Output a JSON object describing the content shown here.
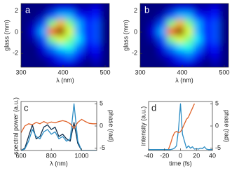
{
  "chart_data": [
    {
      "type": "heatmap",
      "label": "a",
      "xlabel": "λ (nm)",
      "ylabel": "glass (mm)",
      "x_edges": [
        300,
        321,
        342,
        363,
        384,
        405,
        426,
        447,
        468,
        489,
        510
      ],
      "y_edges": [
        2.7,
        1.95,
        1.2,
        0.45,
        -0.3,
        -1.05,
        -1.8,
        -2.55,
        -3.3
      ],
      "z": [
        [
          0,
          0,
          0,
          0.05,
          0.1,
          0.1,
          0.05,
          0.05,
          0.1,
          0
        ],
        [
          0,
          0,
          0.05,
          0.2,
          0.3,
          0.3,
          0.15,
          0.1,
          0.15,
          0
        ],
        [
          0,
          0.05,
          0.2,
          0.5,
          0.7,
          0.5,
          0.3,
          0.15,
          0.2,
          0
        ],
        [
          0,
          0.1,
          0.3,
          0.8,
          1,
          0.6,
          0.3,
          0.15,
          0.2,
          0
        ],
        [
          0,
          0.05,
          0.2,
          0.5,
          0.6,
          0.5,
          0.35,
          0.15,
          0.2,
          0
        ],
        [
          0,
          0,
          0.1,
          0.25,
          0.35,
          0.4,
          0.25,
          0.1,
          0.15,
          0
        ],
        [
          0,
          0,
          0.05,
          0.1,
          0.2,
          0.25,
          0.15,
          0.05,
          0.1,
          0
        ],
        [
          0,
          0,
          0,
          0.05,
          0.1,
          0.1,
          0.05,
          0,
          0.05,
          0
        ]
      ],
      "xlim": [
        300,
        510
      ],
      "xticks": [
        300,
        400,
        500
      ],
      "ylim": [
        -3.3,
        2.7
      ],
      "yticks": [
        -2,
        0,
        2
      ]
    },
    {
      "type": "heatmap",
      "label": "b",
      "xlabel": "λ (nm)",
      "ylabel": "glass (mm)",
      "x_edges": [
        300,
        321,
        342,
        363,
        384,
        405,
        426,
        447,
        468,
        489,
        510
      ],
      "y_edges": [
        2.7,
        1.95,
        1.2,
        0.45,
        -0.3,
        -1.05,
        -1.8,
        -2.55,
        -3.3
      ],
      "z": [
        [
          0,
          0,
          0,
          0.05,
          0.1,
          0.1,
          0.05,
          0.05,
          0.1,
          0
        ],
        [
          0,
          0,
          0.05,
          0.2,
          0.3,
          0.3,
          0.15,
          0.1,
          0.15,
          0
        ],
        [
          0,
          0.05,
          0.2,
          0.5,
          0.7,
          0.5,
          0.3,
          0.15,
          0.2,
          0
        ],
        [
          0,
          0.1,
          0.3,
          0.8,
          1,
          0.6,
          0.3,
          0.15,
          0.2,
          0
        ],
        [
          0,
          0.05,
          0.2,
          0.5,
          0.6,
          0.5,
          0.35,
          0.15,
          0.2,
          0
        ],
        [
          0,
          0,
          0.1,
          0.25,
          0.35,
          0.4,
          0.25,
          0.1,
          0.15,
          0
        ],
        [
          0,
          0,
          0.05,
          0.1,
          0.2,
          0.25,
          0.15,
          0.05,
          0.1,
          0
        ],
        [
          0,
          0,
          0,
          0.05,
          0.1,
          0.1,
          0.05,
          0,
          0.05,
          0
        ]
      ],
      "xlim": [
        300,
        510
      ],
      "xticks": [
        300,
        400,
        500
      ],
      "ylim": [
        -3.3,
        2.7
      ],
      "yticks": [
        -2,
        0,
        2
      ]
    },
    {
      "type": "line",
      "label": "c",
      "xlabel": "λ (nm)",
      "ylabel": "spectral power (a.u.)",
      "y2label": "phase (rad)",
      "x": [
        600,
        625,
        650,
        675,
        700,
        725,
        750,
        775,
        800,
        825,
        850,
        875,
        900,
        925,
        950,
        975,
        1000,
        1025,
        1050,
        1075,
        1100
      ],
      "series": [
        {
          "color": "#0d2f4f",
          "values": [
            0,
            0.05,
            0.3,
            0.55,
            0.25,
            0.3,
            0.5,
            0.55,
            0.45,
            0.5,
            0.3,
            0.35,
            0.25,
            0.2,
            0.6,
            0.15,
            0,
            0,
            0,
            0,
            0
          ]
        },
        {
          "color": "#2b8cc4",
          "values": [
            0,
            0.03,
            0.2,
            0.45,
            0.3,
            0.25,
            0.4,
            0.45,
            0.35,
            0.4,
            0.25,
            0.3,
            0.2,
            0.25,
            1.0,
            0.2,
            0,
            0,
            0,
            0,
            0
          ]
        },
        {
          "color": "#e0632a",
          "axis": "y2",
          "values": [
            -1.5,
            0,
            0.5,
            0.3,
            0.8,
            0.5,
            1,
            0.6,
            0.9,
            0.7,
            1,
            1.2,
            1,
            0.5,
            -0.5,
            0.8,
            1.5,
            1,
            0.6,
            0.5,
            0.5
          ]
        }
      ],
      "xlim": [
        600,
        1100
      ],
      "xticks": [
        600,
        800,
        1000
      ],
      "ylim": [
        0,
        1.05
      ],
      "y2lim": [
        -5.5,
        5.5
      ],
      "y2ticks": [
        -5,
        0,
        5
      ]
    },
    {
      "type": "line",
      "label": "d",
      "xlabel": "time (fs)",
      "ylabel": "intensity (a.u.)",
      "y2label": "phase (rad)",
      "x": [
        -40,
        -37.5,
        -35,
        -32.5,
        -30,
        -27.5,
        -25,
        -22.5,
        -20,
        -17.5,
        -15,
        -12.5,
        -10,
        -7.5,
        -5,
        -2.5,
        0,
        2.5,
        5,
        7.5,
        10,
        12.5,
        15,
        17.5,
        20,
        22.5,
        25,
        27.5,
        30,
        32.5,
        35,
        37.5,
        40
      ],
      "series": [
        {
          "color": "#2b8cc4",
          "values": [
            0.02,
            0.02,
            0.02,
            0.02,
            0.02,
            0.02,
            0.02,
            0.02,
            0.02,
            0.02,
            0.02,
            0.02,
            0.03,
            0.05,
            0.1,
            0.45,
            1.0,
            0.35,
            0.2,
            0.05,
            0.1,
            0.05,
            0.08,
            0.03,
            0.04,
            0.03,
            0.05,
            0.04,
            0.08,
            0.03,
            0.02,
            0.02,
            0.02
          ]
        },
        {
          "color": "#e0632a",
          "axis": "y2",
          "values": [
            null,
            null,
            null,
            null,
            null,
            null,
            null,
            null,
            null,
            null,
            -5.2,
            -4,
            -2.5,
            -1.5,
            -1.2,
            -1.5,
            -1.3,
            -0.5,
            0.5,
            1.5,
            2,
            3,
            4,
            5,
            null,
            null,
            null,
            null,
            null,
            null,
            null,
            null,
            null
          ]
        }
      ],
      "xlim": [
        -40,
        40
      ],
      "xticks": [
        -40,
        -20,
        0,
        20,
        40
      ],
      "ylim": [
        0,
        1.05
      ],
      "y2lim": [
        -5.5,
        5.5
      ],
      "y2ticks": [
        -5,
        0,
        5
      ]
    }
  ]
}
